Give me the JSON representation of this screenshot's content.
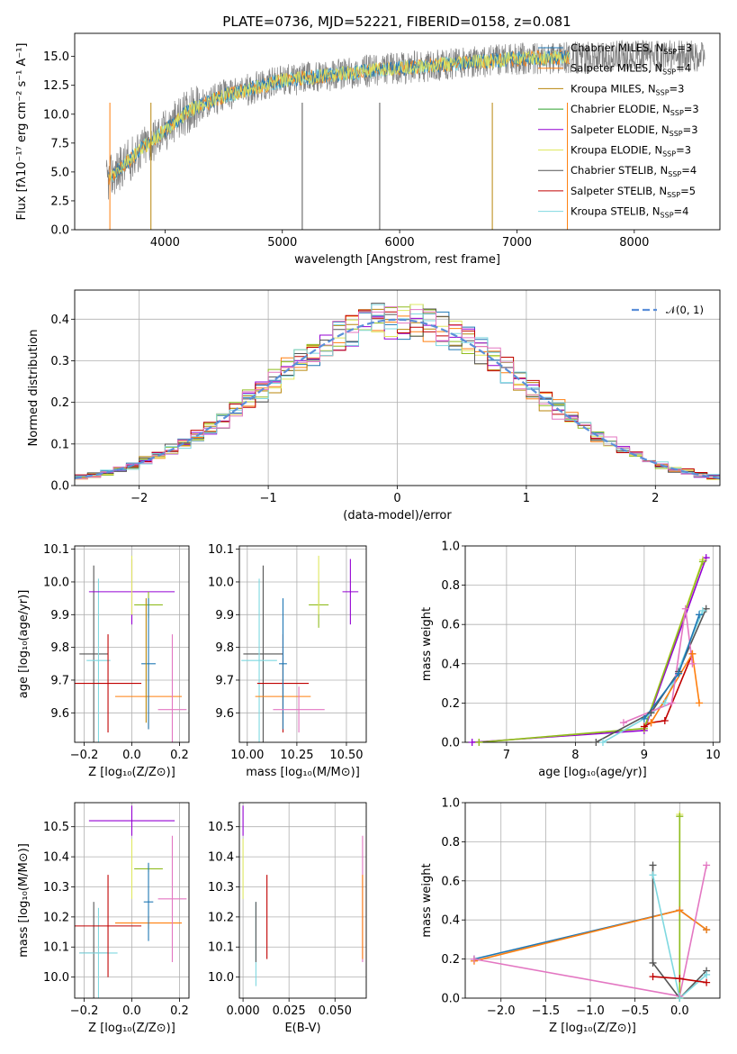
{
  "title": "PLATE=0736, MJD=52221, FIBERID=0158, z=0.081",
  "colors": {
    "chabrier_miles": "#1f77b4",
    "salpeter_miles": "#ff7f0e",
    "kroupa_miles": "#b8860b",
    "chabrier_elodie": "#2ca02c",
    "salpeter_elodie": "#9400d3",
    "kroupa_elodie": "#dfe860",
    "chabrier_stelib": "#555555",
    "salpeter_stelib": "#c00000",
    "kroupa_stelib": "#7fd8e0",
    "pink": "#e377c2",
    "olive": "#8fbc1f",
    "spectrum": "#808080",
    "normal": "#5b8fd9"
  },
  "chart_data": [
    {
      "id": "spectrum",
      "type": "line",
      "xlabel": "wavelength [Angstrom, rest frame]",
      "ylabel": "Flux [fλ10⁻¹⁷ erg cm⁻² s⁻¹ A⁻¹]",
      "xlim": [
        3230,
        8730
      ],
      "ylim": [
        0,
        17
      ],
      "xticks": [
        "4000",
        "5000",
        "6000",
        "7000",
        "8000"
      ],
      "yticks": [
        "0.0",
        "2.5",
        "5.0",
        "7.5",
        "10.0",
        "12.5",
        "15.0"
      ],
      "legend": [
        {
          "label": "Chabrier MILES, N",
          "sub": "SSP",
          "tail": "=3",
          "color": "chabrier_miles"
        },
        {
          "label": "Salpeter MILES, N",
          "sub": "SSP",
          "tail": "=4",
          "color": "salpeter_miles"
        },
        {
          "label": "Kroupa MILES, N",
          "sub": "SSP",
          "tail": "=3",
          "color": "kroupa_miles"
        },
        {
          "label": "Chabrier ELODIE, N",
          "sub": "SSP",
          "tail": "=3",
          "color": "chabrier_elodie"
        },
        {
          "label": "Salpeter ELODIE, N",
          "sub": "SSP",
          "tail": "=3",
          "color": "salpeter_elodie"
        },
        {
          "label": "Kroupa ELODIE, N",
          "sub": "SSP",
          "tail": "=3",
          "color": "kroupa_elodie"
        },
        {
          "label": "Chabrier STELIB, N",
          "sub": "SSP",
          "tail": "=4",
          "color": "chabrier_stelib"
        },
        {
          "label": "Salpeter STELIB, N",
          "sub": "SSP",
          "tail": "=5",
          "color": "salpeter_stelib"
        },
        {
          "label": "Kroupa STELIB, N",
          "sub": "SSP",
          "tail": "=4",
          "color": "kroupa_stelib"
        }
      ],
      "continuum": [
        [
          3500,
          4.2
        ],
        [
          3800,
          7.0
        ],
        [
          4000,
          8.6
        ],
        [
          4200,
          10.3
        ],
        [
          4500,
          11.6
        ],
        [
          5000,
          12.9
        ],
        [
          5500,
          13.5
        ],
        [
          6000,
          14.0
        ],
        [
          6500,
          14.4
        ],
        [
          7000,
          14.8
        ],
        [
          7500,
          14.9
        ],
        [
          8000,
          15.0
        ],
        [
          8600,
          15.0
        ]
      ]
    },
    {
      "id": "residuals",
      "type": "bar",
      "xlabel": "(data-model)/error",
      "ylabel": "Normed distribution",
      "xlim": [
        -2.5,
        2.5
      ],
      "ylim": [
        0,
        0.47
      ],
      "xticks": [
        "−2",
        "−1",
        "0",
        "1",
        "2"
      ],
      "yticks": [
        "0.0",
        "0.1",
        "0.2",
        "0.3",
        "0.4"
      ],
      "legend": "𝒩(0, 1)",
      "bin_width": 0.1,
      "bins_start": -2.5,
      "series": [
        {
          "color": "chabrier_miles",
          "seed": 3
        },
        {
          "color": "salpeter_miles",
          "seed": 7
        },
        {
          "color": "kroupa_miles",
          "seed": 11
        },
        {
          "color": "olive",
          "seed": 5
        },
        {
          "color": "salpeter_elodie",
          "seed": 13
        },
        {
          "color": "kroupa_elodie",
          "seed": 17
        },
        {
          "color": "chabrier_stelib",
          "seed": 19
        },
        {
          "color": "salpeter_stelib",
          "seed": 23
        },
        {
          "color": "kroupa_stelib",
          "seed": 29
        },
        {
          "color": "pink",
          "seed": 31
        }
      ]
    },
    {
      "id": "age_vs_Z",
      "type": "scatter",
      "xlabel": "Z [log₁₀(Z/Z⊙)]",
      "ylabel": "age  [log₁₀(age/yr)]",
      "xlim": [
        -0.24,
        0.24
      ],
      "ylim": [
        9.51,
        10.11
      ],
      "xticks": [
        "−0.2",
        "0.0",
        "0.2"
      ],
      "yticks": [
        "9.6",
        "9.7",
        "9.8",
        "9.9",
        "10.0",
        "10.1"
      ],
      "points": [
        {
          "x": -0.16,
          "y": 9.78,
          "xe": 0.06,
          "ye": 0.27,
          "color": "chabrier_stelib"
        },
        {
          "x": -0.14,
          "y": 9.76,
          "xe": 0.05,
          "ye": 0.25,
          "color": "kroupa_stelib"
        },
        {
          "x": -0.1,
          "y": 9.69,
          "xe": 0.14,
          "ye": 0.15,
          "color": "salpeter_stelib"
        },
        {
          "x": 0.0,
          "y": 9.97,
          "xe": 0.18,
          "ye": 0.1,
          "color": "salpeter_elodie"
        },
        {
          "x": 0.0,
          "y": 9.99,
          "xe": 0.0,
          "ye": 0.09,
          "color": "kroupa_elodie"
        },
        {
          "x": 0.07,
          "y": 9.93,
          "xe": 0.06,
          "ye": 0.04,
          "color": "olive"
        },
        {
          "x": 0.07,
          "y": 9.65,
          "xe": 0.14,
          "ye": 0.1,
          "color": "salpeter_miles"
        },
        {
          "x": 0.07,
          "y": 9.75,
          "xe": 0.03,
          "ye": 0.2,
          "color": "chabrier_miles"
        },
        {
          "x": 0.17,
          "y": 9.61,
          "xe": 0.06,
          "ye": 0.23,
          "color": "pink"
        },
        {
          "x": 0.06,
          "y": 9.76,
          "xe": 0.0,
          "ye": 0.19,
          "color": "kroupa_miles"
        }
      ]
    },
    {
      "id": "age_vs_mass",
      "type": "scatter",
      "xlabel": "mass [log₁₀(M/M⊙)]",
      "ylabel": "",
      "xlim": [
        9.96,
        10.6
      ],
      "ylim": [
        9.51,
        10.11
      ],
      "xticks": [
        "10.00",
        "10.25",
        "10.50"
      ],
      "yticks": [
        "9.6",
        "9.7",
        "9.8",
        "9.9",
        "10.0",
        "10.1"
      ],
      "points": [
        {
          "x": 10.08,
          "y": 9.78,
          "xe": 0.1,
          "ye": 0.27,
          "color": "chabrier_stelib"
        },
        {
          "x": 10.06,
          "y": 9.76,
          "xe": 0.09,
          "ye": 0.25,
          "color": "kroupa_stelib"
        },
        {
          "x": 10.18,
          "y": 9.69,
          "xe": 0.13,
          "ye": 0.15,
          "color": "salpeter_stelib"
        },
        {
          "x": 10.52,
          "y": 9.97,
          "xe": 0.04,
          "ye": 0.1,
          "color": "salpeter_elodie"
        },
        {
          "x": 10.36,
          "y": 9.93,
          "xe": 0.05,
          "ye": 0.07,
          "color": "olive"
        },
        {
          "x": 10.36,
          "y": 9.99,
          "xe": 0.0,
          "ye": 0.09,
          "color": "kroupa_elodie"
        },
        {
          "x": 10.18,
          "y": 9.65,
          "xe": 0.14,
          "ye": 0.1,
          "color": "salpeter_miles"
        },
        {
          "x": 10.18,
          "y": 9.75,
          "xe": 0.02,
          "ye": 0.2,
          "color": "chabrier_miles"
        },
        {
          "x": 10.26,
          "y": 9.61,
          "xe": 0.13,
          "ye": 0.07,
          "color": "pink"
        }
      ]
    },
    {
      "id": "weight_vs_age",
      "type": "line",
      "xlabel": "age  [log₁₀(age/yr)]",
      "ylabel": "mass weight",
      "xlim": [
        6.4,
        10.1
      ],
      "ylim": [
        0,
        1.0
      ],
      "xticks": [
        "7",
        "8",
        "9",
        "10"
      ],
      "yticks": [
        "0.0",
        "0.2",
        "0.4",
        "0.6",
        "0.8",
        "1.0"
      ],
      "series": [
        {
          "color": "salpeter_elodie",
          "points": [
            [
              6.5,
              0.0
            ],
            [
              9.0,
              0.06
            ],
            [
              9.9,
              0.94
            ]
          ]
        },
        {
          "color": "kroupa_elodie",
          "points": [
            [
              6.6,
              0.0
            ],
            [
              9.0,
              0.07
            ],
            [
              9.85,
              0.93
            ]
          ]
        },
        {
          "color": "olive",
          "points": [
            [
              6.6,
              0.0
            ],
            [
              9.0,
              0.07
            ],
            [
              9.85,
              0.92
            ]
          ]
        },
        {
          "color": "chabrier_stelib",
          "points": [
            [
              8.3,
              0.0
            ],
            [
              9.1,
              0.15
            ],
            [
              9.5,
              0.36
            ],
            [
              9.9,
              0.68
            ]
          ]
        },
        {
          "color": "kroupa_stelib",
          "points": [
            [
              8.4,
              0.0
            ],
            [
              9.0,
              0.12
            ],
            [
              9.3,
              0.2
            ],
            [
              9.85,
              0.67
            ]
          ]
        },
        {
          "color": "salpeter_stelib",
          "points": [
            [
              9.0,
              0.08
            ],
            [
              9.1,
              0.1
            ],
            [
              9.3,
              0.11
            ],
            [
              9.7,
              0.45
            ]
          ]
        },
        {
          "color": "salpeter_miles",
          "points": [
            [
              9.1,
              0.1
            ],
            [
              9.7,
              0.45
            ],
            [
              9.8,
              0.2
            ]
          ]
        },
        {
          "color": "pink",
          "points": [
            [
              8.7,
              0.1
            ],
            [
              9.4,
              0.2
            ],
            [
              9.6,
              0.68
            ],
            [
              9.7,
              0.4
            ]
          ]
        },
        {
          "color": "chabrier_miles",
          "points": [
            [
              9.0,
              0.12
            ],
            [
              9.5,
              0.35
            ],
            [
              9.8,
              0.65
            ]
          ]
        }
      ]
    },
    {
      "id": "mass_vs_Z",
      "type": "scatter",
      "xlabel": "Z [log₁₀(Z/Z⊙)]",
      "ylabel": "mass [log₁₀(M/M⊙)]",
      "xlim": [
        -0.24,
        0.24
      ],
      "ylim": [
        9.93,
        10.58
      ],
      "xticks": [
        "−0.2",
        "0.0",
        "0.2"
      ],
      "yticks": [
        "10.0",
        "10.1",
        "10.2",
        "10.3",
        "10.4",
        "10.5"
      ],
      "points": [
        {
          "x": -0.16,
          "y": 10.08,
          "xe": 0.06,
          "ye": 0.17,
          "color": "chabrier_stelib"
        },
        {
          "x": -0.14,
          "y": 10.08,
          "xe": 0.08,
          "ye": 0.15,
          "color": "kroupa_stelib"
        },
        {
          "x": -0.1,
          "y": 10.17,
          "xe": 0.14,
          "ye": 0.17,
          "color": "salpeter_stelib"
        },
        {
          "x": 0.0,
          "y": 10.52,
          "xe": 0.18,
          "ye": 0.05,
          "color": "salpeter_elodie"
        },
        {
          "x": 0.0,
          "y": 10.36,
          "xe": 0.0,
          "ye": 0.1,
          "color": "kroupa_elodie"
        },
        {
          "x": 0.07,
          "y": 10.36,
          "xe": 0.06,
          "ye": 0.01,
          "color": "olive"
        },
        {
          "x": 0.07,
          "y": 10.18,
          "xe": 0.14,
          "ye": 0.02,
          "color": "salpeter_miles"
        },
        {
          "x": 0.07,
          "y": 10.25,
          "xe": 0.02,
          "ye": 0.13,
          "color": "chabrier_miles"
        },
        {
          "x": 0.17,
          "y": 10.26,
          "xe": 0.06,
          "ye": 0.21,
          "color": "pink"
        }
      ]
    },
    {
      "id": "mass_vs_ebv",
      "type": "scatter",
      "xlabel": "E(B-V)",
      "ylabel": "",
      "xlim": [
        -0.002,
        0.067
      ],
      "ylim": [
        9.93,
        10.58
      ],
      "xticks": [
        "0.000",
        "0.025",
        "0.050"
      ],
      "yticks": [
        "10.0",
        "10.1",
        "10.2",
        "10.3",
        "10.4",
        "10.5"
      ],
      "points": [
        {
          "x": 0.0,
          "y": 10.52,
          "ye": 0.05,
          "color": "salpeter_elodie"
        },
        {
          "x": 0.0,
          "y": 10.36,
          "ye": 0.1,
          "color": "kroupa_elodie"
        },
        {
          "x": 0.007,
          "y": 10.11,
          "ye": 0.14,
          "color": "kroupa_stelib"
        },
        {
          "x": 0.007,
          "y": 10.15,
          "ye": 0.1,
          "color": "chabrier_stelib"
        },
        {
          "x": 0.013,
          "y": 10.2,
          "ye": 0.14,
          "color": "salpeter_stelib"
        },
        {
          "x": 0.065,
          "y": 10.26,
          "ye": 0.21,
          "color": "pink"
        },
        {
          "x": 0.065,
          "y": 10.2,
          "ye": 0.14,
          "color": "salpeter_miles"
        }
      ]
    },
    {
      "id": "weight_vs_Z",
      "type": "line",
      "xlabel": "Z [log₁₀(Z/Z⊙)]",
      "ylabel": "mass weight",
      "xlim": [
        -2.4,
        0.45
      ],
      "ylim": [
        0,
        1.0
      ],
      "xticks": [
        "−2.0",
        "−1.5",
        "−1.0",
        "−0.5",
        "0.0"
      ],
      "yticks": [
        "0.0",
        "0.2",
        "0.4",
        "0.6",
        "0.8",
        "1.0"
      ],
      "series": [
        {
          "color": "chabrier_miles",
          "points": [
            [
              -2.3,
              0.2
            ],
            [
              0.0,
              0.45
            ],
            [
              0.3,
              0.35
            ]
          ]
        },
        {
          "color": "salpeter_miles",
          "points": [
            [
              -2.3,
              0.19
            ],
            [
              0.0,
              0.45
            ],
            [
              0.3,
              0.35
            ]
          ]
        },
        {
          "color": "pink",
          "points": [
            [
              -2.3,
              0.2
            ],
            [
              0.0,
              0.01
            ],
            [
              0.3,
              0.68
            ]
          ]
        },
        {
          "color": "kroupa_elodie",
          "points": [
            [
              0.0,
              0.0
            ],
            [
              0.0,
              0.94
            ]
          ]
        },
        {
          "color": "olive",
          "points": [
            [
              0.0,
              0.0
            ],
            [
              0.0,
              0.93
            ]
          ]
        },
        {
          "color": "chabrier_stelib",
          "points": [
            [
              -0.3,
              0.68
            ],
            [
              -0.3,
              0.18
            ],
            [
              0.0,
              0.0
            ],
            [
              0.3,
              0.14
            ]
          ]
        },
        {
          "color": "kroupa_stelib",
          "points": [
            [
              -0.3,
              0.63
            ],
            [
              0.0,
              0.0
            ],
            [
              0.3,
              0.12
            ]
          ]
        },
        {
          "color": "salpeter_stelib",
          "points": [
            [
              -0.3,
              0.11
            ],
            [
              0.0,
              0.1
            ],
            [
              0.3,
              0.08
            ]
          ]
        }
      ]
    }
  ]
}
